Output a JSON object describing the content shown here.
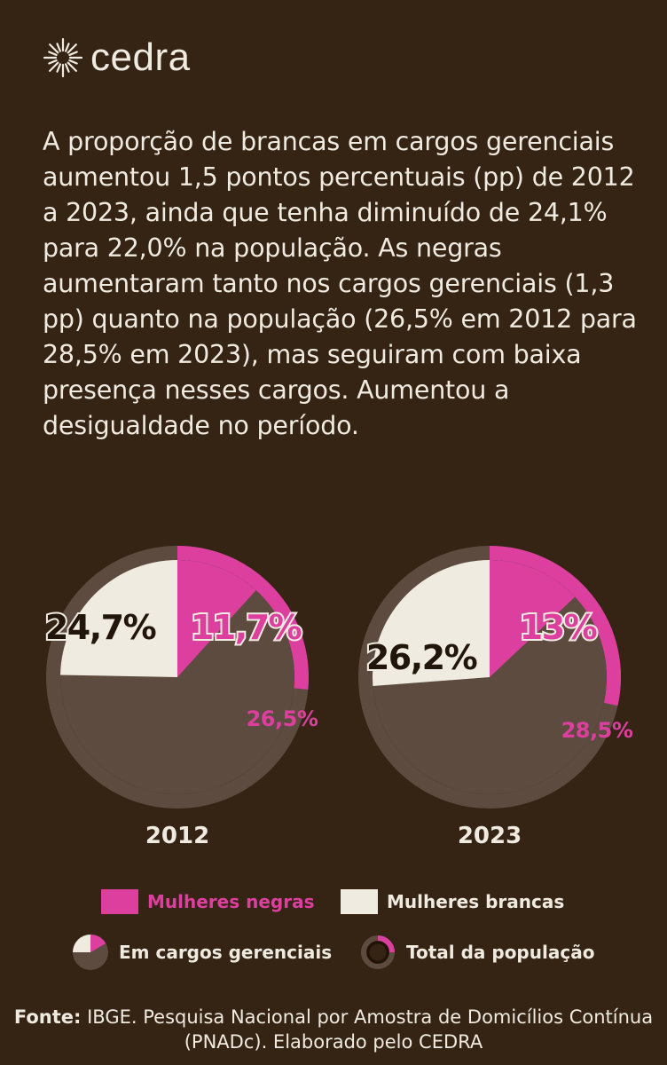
{
  "brand": {
    "name": "cedra",
    "logo_icon": "sun-burst-icon"
  },
  "intro_text": "A proporção de brancas em cargos gerenciais aumentou 1,5 pontos percentuais (pp) de 2012 a 2023, ainda que tenha diminuído de 24,1% para 22,0% na população. As negras aumentaram tanto nos cargos gerenciais (1,3 pp) quanto na população (26,5% em 2012 para 28,5% em 2023), mas seguiram com baixa presença nesses cargos. Aumentou a desigualdade no período.",
  "colors": {
    "background": "#352314",
    "negras": "#dd3f9f",
    "brancas": "#efebe0",
    "pie_rest": "#5d4b40",
    "ring_rest": "#5d4b40",
    "text": "#efebe0"
  },
  "chart_data": [
    {
      "type": "pie",
      "title": "2012",
      "inner_pie": {
        "meaning": "Em cargos gerenciais",
        "negras": 11.7,
        "brancas": 24.7,
        "labels": {
          "negras": "11,7%",
          "brancas": "24,7%"
        }
      },
      "outer_ring": {
        "meaning": "Total da população",
        "negras": 26.5,
        "labels": {
          "negras": "26,5%"
        }
      }
    },
    {
      "type": "pie",
      "title": "2023",
      "inner_pie": {
        "meaning": "Em cargos gerenciais",
        "negras": 13.0,
        "brancas": 26.2,
        "labels": {
          "negras": "13%",
          "brancas": "26,2%"
        }
      },
      "outer_ring": {
        "meaning": "Total da população",
        "negras": 28.5,
        "labels": {
          "negras": "28,5%"
        }
      }
    }
  ],
  "legend": {
    "negras": "Mulheres negras",
    "brancas": "Mulheres brancas",
    "cargos": "Em cargos gerenciais",
    "populacao": "Total da população"
  },
  "source": {
    "label": "Fonte:",
    "text": " IBGE. Pesquisa Nacional por Amostra de Domicílios Contínua (PNADc). Elaborado pelo CEDRA"
  }
}
